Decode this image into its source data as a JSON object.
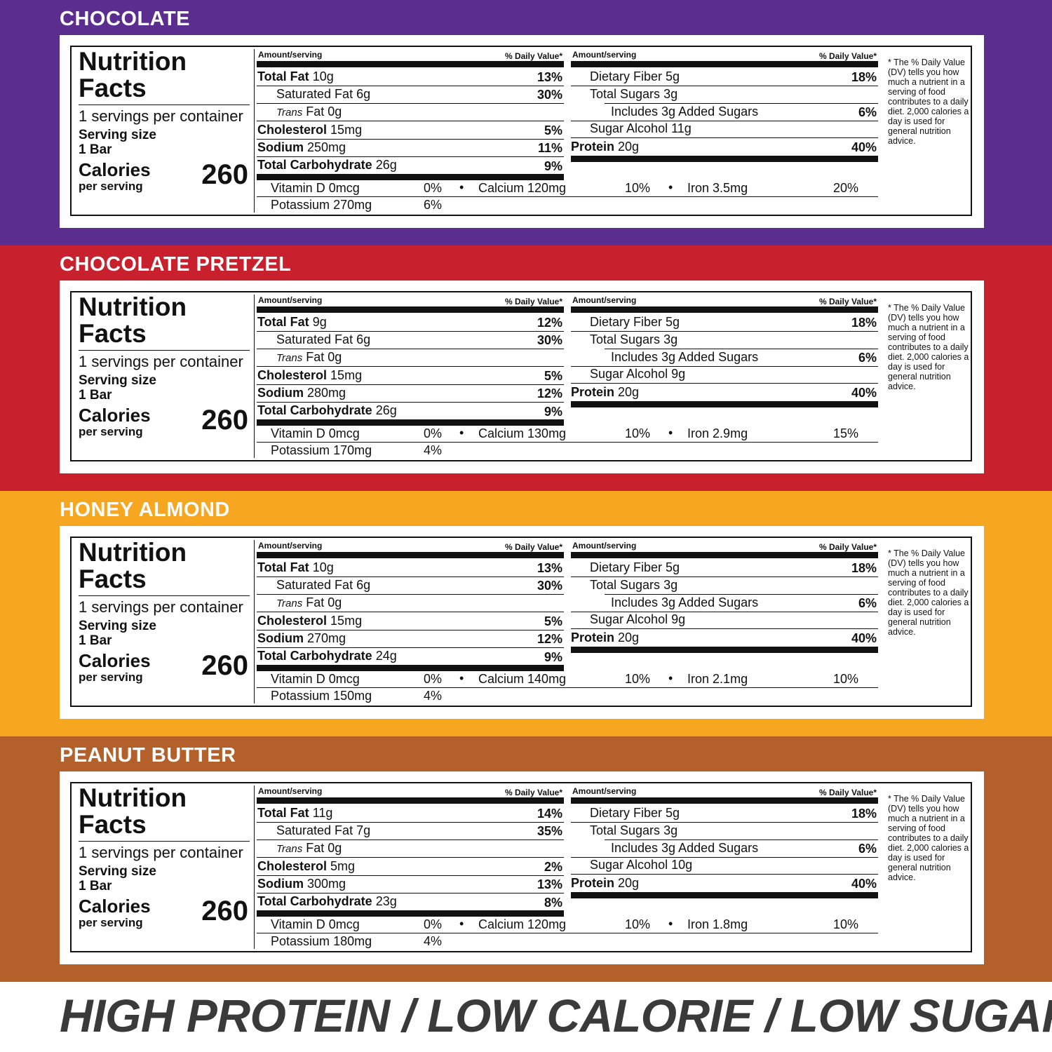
{
  "common": {
    "nutrition": "Nutrition",
    "facts": "Facts",
    "servings_per_container": "1 servings per container",
    "serving_size_label": "Serving size",
    "serving_size_value": "1 Bar",
    "calories_label": "Calories",
    "per_serving": "per serving",
    "amount_serving": "Amount/serving",
    "daily_value": "% Daily Value*",
    "total_fat": "Total Fat",
    "saturated_fat": "Saturated Fat",
    "trans": "Trans",
    "fat": "Fat",
    "cholesterol": "Cholesterol",
    "sodium": "Sodium",
    "total_carbohydrate": "Total Carbohydrate",
    "dietary_fiber": "Dietary Fiber",
    "total_sugars": "Total Sugars",
    "sugar_alcohol": "Sugar Alcohol",
    "protein": "Protein",
    "vitamin_d": "Vitamin D",
    "calcium": "Calcium",
    "iron": "Iron",
    "potassium": "Potassium",
    "bullet": "•",
    "dv_note": "* The % Daily Value (DV) tells you how much a nutrient in a serving of food contributes to a daily diet. 2,000 calories a day is used for general nutrition advice."
  },
  "colors": {
    "chocolate": "#5b2d8e",
    "chocolate_pretzel": "#c8202d",
    "honey_almond": "#f7a620",
    "peanut_butter": "#b4602a"
  },
  "flavors": [
    {
      "name": "CHOCOLATE",
      "calories": "260",
      "total_fat": "10g",
      "total_fat_dv": "13%",
      "sat_fat": "6g",
      "sat_fat_dv": "30%",
      "trans_fat": "0g",
      "cholesterol": "15mg",
      "cholesterol_dv": "5%",
      "sodium": "250mg",
      "sodium_dv": "11%",
      "carb": "26g",
      "carb_dv": "9%",
      "fiber": "5g",
      "fiber_dv": "18%",
      "sugars": "3g",
      "added_sugars": "Includes 3g Added Sugars",
      "added_sugars_dv": "6%",
      "sugar_alcohol": "11g",
      "protein": "20g",
      "protein_dv": "40%",
      "vitamin_d": "0mcg",
      "vitamin_d_dv": "0%",
      "calcium": "120mg",
      "calcium_dv": "10%",
      "iron": "3.5mg",
      "iron_dv": "20%",
      "potassium": "270mg",
      "potassium_dv": "6%"
    },
    {
      "name": "CHOCOLATE PRETZEL",
      "calories": "260",
      "total_fat": "9g",
      "total_fat_dv": "12%",
      "sat_fat": "6g",
      "sat_fat_dv": "30%",
      "trans_fat": "0g",
      "cholesterol": "15mg",
      "cholesterol_dv": "5%",
      "sodium": "280mg",
      "sodium_dv": "12%",
      "carb": "26g",
      "carb_dv": "9%",
      "fiber": "5g",
      "fiber_dv": "18%",
      "sugars": "3g",
      "added_sugars": "Includes 3g Added Sugars",
      "added_sugars_dv": "6%",
      "sugar_alcohol": "9g",
      "protein": "20g",
      "protein_dv": "40%",
      "vitamin_d": "0mcg",
      "vitamin_d_dv": "0%",
      "calcium": "130mg",
      "calcium_dv": "10%",
      "iron": "2.9mg",
      "iron_dv": "15%",
      "potassium": "170mg",
      "potassium_dv": "4%"
    },
    {
      "name": "HONEY ALMOND",
      "calories": "260",
      "total_fat": "10g",
      "total_fat_dv": "13%",
      "sat_fat": "6g",
      "sat_fat_dv": "30%",
      "trans_fat": "0g",
      "cholesterol": "15mg",
      "cholesterol_dv": "5%",
      "sodium": "270mg",
      "sodium_dv": "12%",
      "carb": "24g",
      "carb_dv": "9%",
      "fiber": "5g",
      "fiber_dv": "18%",
      "sugars": "3g",
      "added_sugars": "Includes 3g Added Sugars",
      "added_sugars_dv": "6%",
      "sugar_alcohol": "9g",
      "protein": "20g",
      "protein_dv": "40%",
      "vitamin_d": "0mcg",
      "vitamin_d_dv": "0%",
      "calcium": "140mg",
      "calcium_dv": "10%",
      "iron": "2.1mg",
      "iron_dv": "10%",
      "potassium": "150mg",
      "potassium_dv": "4%"
    },
    {
      "name": "PEANUT BUTTER",
      "calories": "260",
      "total_fat": "11g",
      "total_fat_dv": "14%",
      "sat_fat": "7g",
      "sat_fat_dv": "35%",
      "trans_fat": "0g",
      "cholesterol": "5mg",
      "cholesterol_dv": "2%",
      "sodium": "300mg",
      "sodium_dv": "13%",
      "carb": "23g",
      "carb_dv": "8%",
      "fiber": "5g",
      "fiber_dv": "18%",
      "sugars": "3g",
      "added_sugars": "Includes 3g Added Sugars",
      "added_sugars_dv": "6%",
      "sugar_alcohol": "10g",
      "protein": "20g",
      "protein_dv": "40%",
      "vitamin_d": "0mcg",
      "vitamin_d_dv": "0%",
      "calcium": "120mg",
      "calcium_dv": "10%",
      "iron": "1.8mg",
      "iron_dv": "10%",
      "potassium": "180mg",
      "potassium_dv": "4%"
    }
  ],
  "tagline": "HIGH PROTEIN / LOW CALORIE / LOW SUGAR"
}
